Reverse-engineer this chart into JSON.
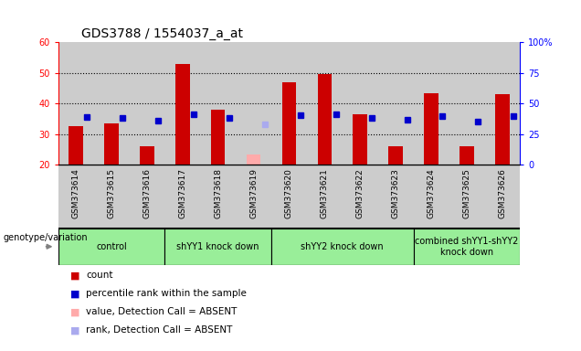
{
  "title": "GDS3788 / 1554037_a_at",
  "samples": [
    "GSM373614",
    "GSM373615",
    "GSM373616",
    "GSM373617",
    "GSM373618",
    "GSM373619",
    "GSM373620",
    "GSM373621",
    "GSM373622",
    "GSM373623",
    "GSM373624",
    "GSM373625",
    "GSM373626"
  ],
  "count_values": [
    32.5,
    33.5,
    26.0,
    53.0,
    38.0,
    null,
    47.0,
    49.5,
    36.5,
    26.0,
    43.5,
    26.0,
    43.0
  ],
  "rank_values": [
    39.0,
    38.0,
    36.0,
    41.0,
    38.0,
    null,
    40.5,
    41.0,
    38.0,
    36.5,
    40.0,
    35.0,
    39.5
  ],
  "absent_count": [
    null,
    null,
    null,
    null,
    null,
    23.5,
    null,
    null,
    null,
    null,
    null,
    null,
    null
  ],
  "absent_rank": [
    null,
    null,
    null,
    null,
    null,
    33.0,
    null,
    null,
    null,
    null,
    null,
    null,
    null
  ],
  "ylim": [
    20,
    60
  ],
  "y2lim": [
    0,
    100
  ],
  "yticks": [
    20,
    30,
    40,
    50,
    60
  ],
  "y2ticks": [
    0,
    25,
    50,
    75,
    100
  ],
  "groups": [
    {
      "label": "control",
      "start": 0,
      "end": 2
    },
    {
      "label": "shYY1 knock down",
      "start": 3,
      "end": 5
    },
    {
      "label": "shYY2 knock down",
      "start": 6,
      "end": 9
    },
    {
      "label": "combined shYY1-shYY2\nknock down",
      "start": 10,
      "end": 12
    }
  ],
  "group_color": "#99ee99",
  "bar_color": "#cc0000",
  "rank_color": "#0000cc",
  "absent_bar_color": "#ffaaaa",
  "absent_rank_color": "#aaaaee",
  "bg_color": "#cccccc",
  "bar_width": 0.4,
  "rank_marker_size": 5,
  "title_fontsize": 10,
  "tick_fontsize": 7,
  "label_fontsize": 8
}
